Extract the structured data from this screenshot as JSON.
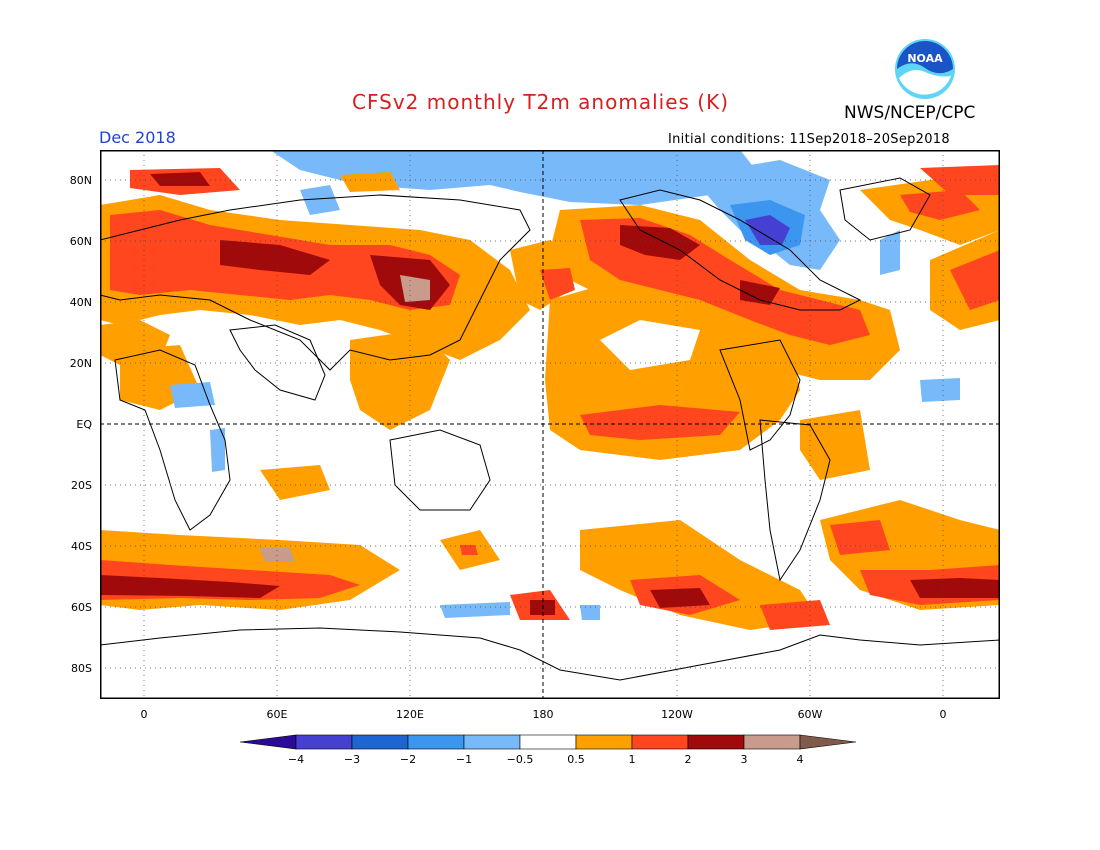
{
  "header": {
    "title": "CFSv2 monthly T2m anomalies (K)",
    "agency": "NWS/NCEP/CPC",
    "valid_month": "Dec 2018",
    "initial_conditions": "Initial conditions: 11Sep2018–20Sep2018",
    "logo_text": "NOAA"
  },
  "map": {
    "latitude_labels": [
      "80N",
      "60N",
      "40N",
      "20N",
      "EQ",
      "20S",
      "40S",
      "60S",
      "80S"
    ],
    "longitude_labels": [
      "0",
      "60E",
      "120E",
      "180",
      "120W",
      "60W",
      "0"
    ],
    "dashed_lines": [
      "EQ",
      "180"
    ]
  },
  "colorbar": {
    "tick_labels": [
      "−4",
      "−3",
      "−2",
      "−1",
      "−0.5",
      "0.5",
      "1",
      "2",
      "3",
      "4"
    ],
    "colors": [
      "#2a0a96",
      "#4640d2",
      "#1e64d2",
      "#3c96f0",
      "#78b9fa",
      "#ffffff",
      "#ffa000",
      "#ff461e",
      "#a00a0a",
      "#c89b8c",
      "#825a4b"
    ]
  },
  "colors": {
    "title": "#d81e1e",
    "valid_month": "#2244cc",
    "noaa_blue": "#1a55c8",
    "noaa_cyan": "#5fd4f4"
  }
}
